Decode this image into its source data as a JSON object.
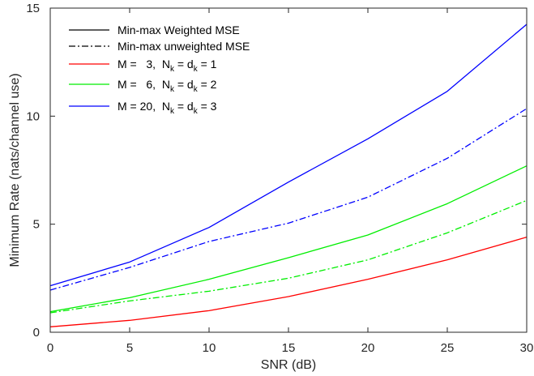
{
  "chart_data": {
    "type": "line",
    "title": "",
    "xlabel": "SNR (dB)",
    "ylabel": "Minimum Rate (nats/channel use)",
    "x": [
      0,
      5,
      10,
      15,
      20,
      25,
      30
    ],
    "xlim": [
      0,
      30
    ],
    "ylim": [
      0,
      15
    ],
    "xticks": [
      "0",
      "5",
      "10",
      "15",
      "20",
      "25",
      "30"
    ],
    "yticks": [
      "0",
      "5",
      "10",
      "15"
    ],
    "grid": false,
    "legend_position": "top-left",
    "legend": [
      {
        "text": "Min-max Weighted MSE",
        "style": "solid",
        "color": "#000000"
      },
      {
        "text": "Min-max unweighted MSE",
        "style": "dashdot",
        "color": "#000000"
      },
      {
        "parts": [
          [
            "M =   3,  N",
            ""
          ],
          [
            "k",
            "sub"
          ],
          [
            " = d",
            ""
          ],
          [
            "k",
            "sub"
          ],
          [
            " = 1",
            ""
          ]
        ],
        "style": "solid",
        "color": "#ff0000"
      },
      {
        "parts": [
          [
            "M =   6,  N",
            ""
          ],
          [
            "k",
            "sub"
          ],
          [
            " = d",
            ""
          ],
          [
            "k",
            "sub"
          ],
          [
            " = 2",
            ""
          ]
        ],
        "style": "solid",
        "color": "#00ee00"
      },
      {
        "parts": [
          [
            "M = 20,  N",
            ""
          ],
          [
            "k",
            "sub"
          ],
          [
            " = d",
            ""
          ],
          [
            "k",
            "sub"
          ],
          [
            " = 3",
            ""
          ]
        ],
        "style": "solid",
        "color": "#0000ff"
      }
    ],
    "series": [
      {
        "group": "M=20",
        "method": "weighted",
        "style": "solid",
        "color": "#0000ff",
        "values": [
          2.15,
          3.25,
          4.85,
          6.95,
          8.95,
          11.15,
          14.25
        ]
      },
      {
        "group": "M=20",
        "method": "unweighted",
        "style": "dashdot",
        "color": "#0000ff",
        "values": [
          1.95,
          3.0,
          4.2,
          5.05,
          6.25,
          8.05,
          10.35
        ]
      },
      {
        "group": "M=6",
        "method": "weighted",
        "style": "solid",
        "color": "#00ee00",
        "values": [
          0.95,
          1.6,
          2.45,
          3.45,
          4.5,
          5.95,
          7.7
        ]
      },
      {
        "group": "M=6",
        "method": "unweighted",
        "style": "dashdot",
        "color": "#00ee00",
        "values": [
          0.9,
          1.45,
          1.9,
          2.5,
          3.35,
          4.6,
          6.1
        ]
      },
      {
        "group": "M=3",
        "method": "weighted",
        "style": "solid",
        "color": "#ff0000",
        "values": [
          0.25,
          0.55,
          1.0,
          1.65,
          2.45,
          3.35,
          4.4
        ]
      }
    ]
  }
}
